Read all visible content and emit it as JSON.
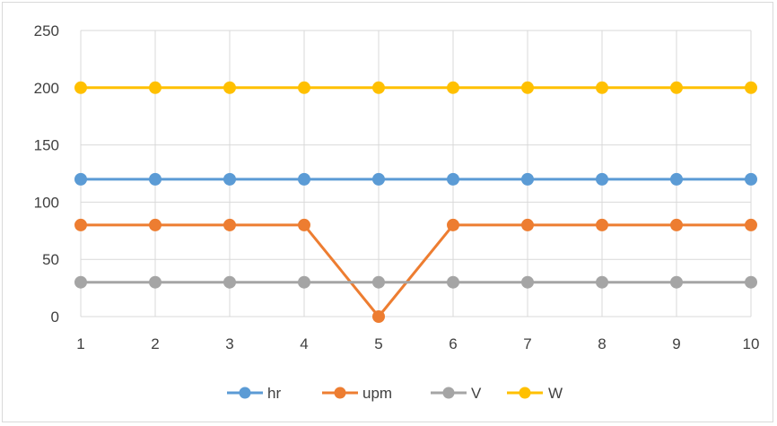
{
  "chart_data": {
    "type": "line",
    "title": "",
    "xlabel": "",
    "ylabel": "",
    "x": [
      1,
      2,
      3,
      4,
      5,
      6,
      7,
      8,
      9,
      10
    ],
    "x_tick_labels": [
      "1",
      "2",
      "3",
      "4",
      "5",
      "6",
      "7",
      "8",
      "9",
      "10"
    ],
    "y_tick_labels": [
      "0",
      "50",
      "100",
      "150",
      "200",
      "250"
    ],
    "ylim": [
      0,
      250
    ],
    "y_ticks": [
      0,
      50,
      100,
      150,
      200,
      250
    ],
    "grid": true,
    "legend_position": "bottom",
    "series": [
      {
        "name": "hr",
        "color": "#5b9bd5",
        "values": [
          120,
          120,
          120,
          120,
          120,
          120,
          120,
          120,
          120,
          120
        ]
      },
      {
        "name": "upm",
        "color": "#ed7d31",
        "values": [
          80,
          80,
          80,
          80,
          0,
          80,
          80,
          80,
          80,
          80
        ]
      },
      {
        "name": "V",
        "color": "#a5a5a5",
        "values": [
          30,
          30,
          30,
          30,
          30,
          30,
          30,
          30,
          30,
          30
        ]
      },
      {
        "name": "W",
        "color": "#ffc000",
        "values": [
          200,
          200,
          200,
          200,
          200,
          200,
          200,
          200,
          200,
          200
        ]
      }
    ]
  }
}
